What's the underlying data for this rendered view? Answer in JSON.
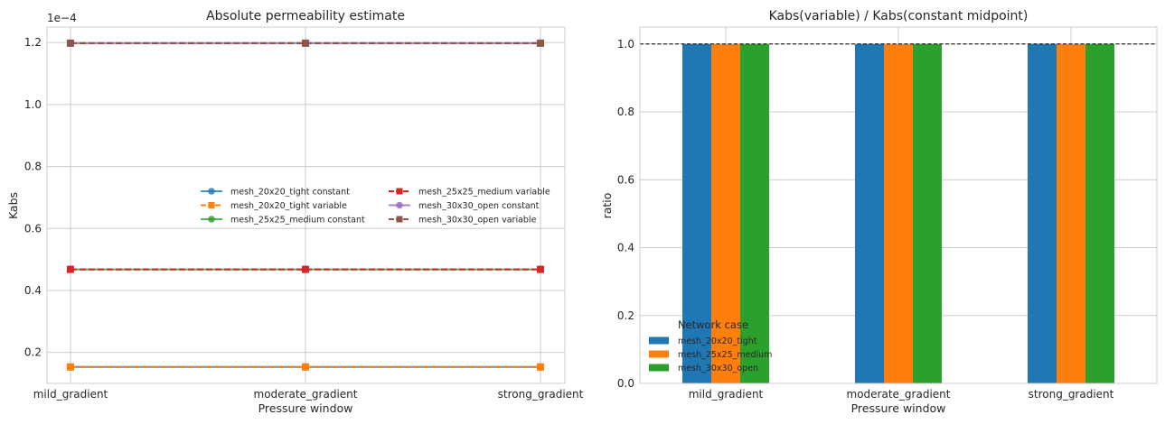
{
  "chart_data": [
    {
      "type": "line",
      "title": "Absolute permeability estimate",
      "xlabel": "Pressure window",
      "ylabel": "Kabs",
      "offset_label": "1e−4",
      "categories": [
        "mild_gradient",
        "moderate_gradient",
        "strong_gradient"
      ],
      "ylim": [
        0.1,
        1.25
      ],
      "yticks": [
        0.2,
        0.4,
        0.6,
        0.8,
        1.0,
        1.2
      ],
      "ytick_labels": [
        "0.2",
        "0.4",
        "0.6",
        "0.8",
        "1.0",
        "1.2"
      ],
      "grid": true,
      "legend": "center-right, 2 columns",
      "series": [
        {
          "name": "mesh_20x20_tight constant",
          "values": [
            0.153,
            0.153,
            0.153
          ],
          "color": "#1f77b4",
          "marker": "circle",
          "dash": false
        },
        {
          "name": "mesh_20x20_tight variable",
          "values": [
            0.153,
            0.153,
            0.153
          ],
          "color": "#ff7f0e",
          "marker": "square",
          "dash": true
        },
        {
          "name": "mesh_25x25_medium constant",
          "values": [
            0.468,
            0.468,
            0.468
          ],
          "color": "#2ca02c",
          "marker": "circle",
          "dash": false
        },
        {
          "name": "mesh_25x25_medium variable",
          "values": [
            0.468,
            0.468,
            0.468
          ],
          "color": "#d62728",
          "marker": "square",
          "dash": true
        },
        {
          "name": "mesh_30x30_open constant",
          "values": [
            1.198,
            1.198,
            1.198
          ],
          "color": "#9467bd",
          "marker": "circle",
          "dash": false
        },
        {
          "name": "mesh_30x30_open variable",
          "values": [
            1.198,
            1.198,
            1.198
          ],
          "color": "#8c564b",
          "marker": "square",
          "dash": true
        }
      ]
    },
    {
      "type": "bar",
      "title": "Kabs(variable) / Kabs(constant midpoint)",
      "xlabel": "Pressure window",
      "ylabel": "ratio",
      "categories": [
        "mild_gradient",
        "moderate_gradient",
        "strong_gradient"
      ],
      "ylim": [
        0,
        1.05
      ],
      "yticks": [
        0.0,
        0.2,
        0.4,
        0.6,
        0.8,
        1.0
      ],
      "ytick_labels": [
        "0.0",
        "0.2",
        "0.4",
        "0.6",
        "0.8",
        "1.0"
      ],
      "reference_line": 1.0,
      "grid": true,
      "legend_title": "Network case",
      "legend": "lower-left",
      "series": [
        {
          "name": "mesh_20x20_tight",
          "values": [
            1.0,
            1.0,
            1.0
          ],
          "color": "#1f77b4"
        },
        {
          "name": "mesh_25x25_medium",
          "values": [
            1.0,
            1.0,
            1.0
          ],
          "color": "#ff7f0e"
        },
        {
          "name": "mesh_30x30_open",
          "values": [
            1.0,
            1.0,
            1.0
          ],
          "color": "#2ca02c"
        }
      ]
    }
  ]
}
